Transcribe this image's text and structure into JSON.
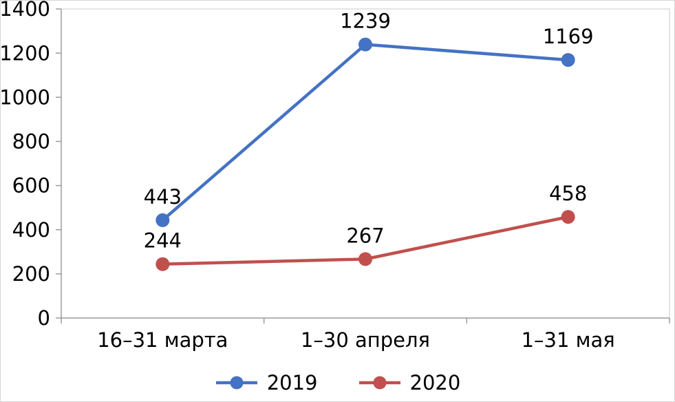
{
  "chart_data": {
    "type": "line",
    "title": "",
    "xlabel": "",
    "ylabel": "",
    "categories": [
      "16–31 марта",
      "1–30 апреля",
      "1–31 мая"
    ],
    "series": [
      {
        "name": "2019",
        "color": "#4472c4",
        "values": [
          443,
          1239,
          1169
        ]
      },
      {
        "name": "2020",
        "color": "#c0504d",
        "values": [
          244,
          267,
          458
        ]
      }
    ],
    "ylim": [
      0,
      1400
    ],
    "ytick_step": 200,
    "grid": false,
    "legend_position": "bottom",
    "axis_color": "#9b9b9b",
    "plot_border_color": "#c9c9c9"
  }
}
